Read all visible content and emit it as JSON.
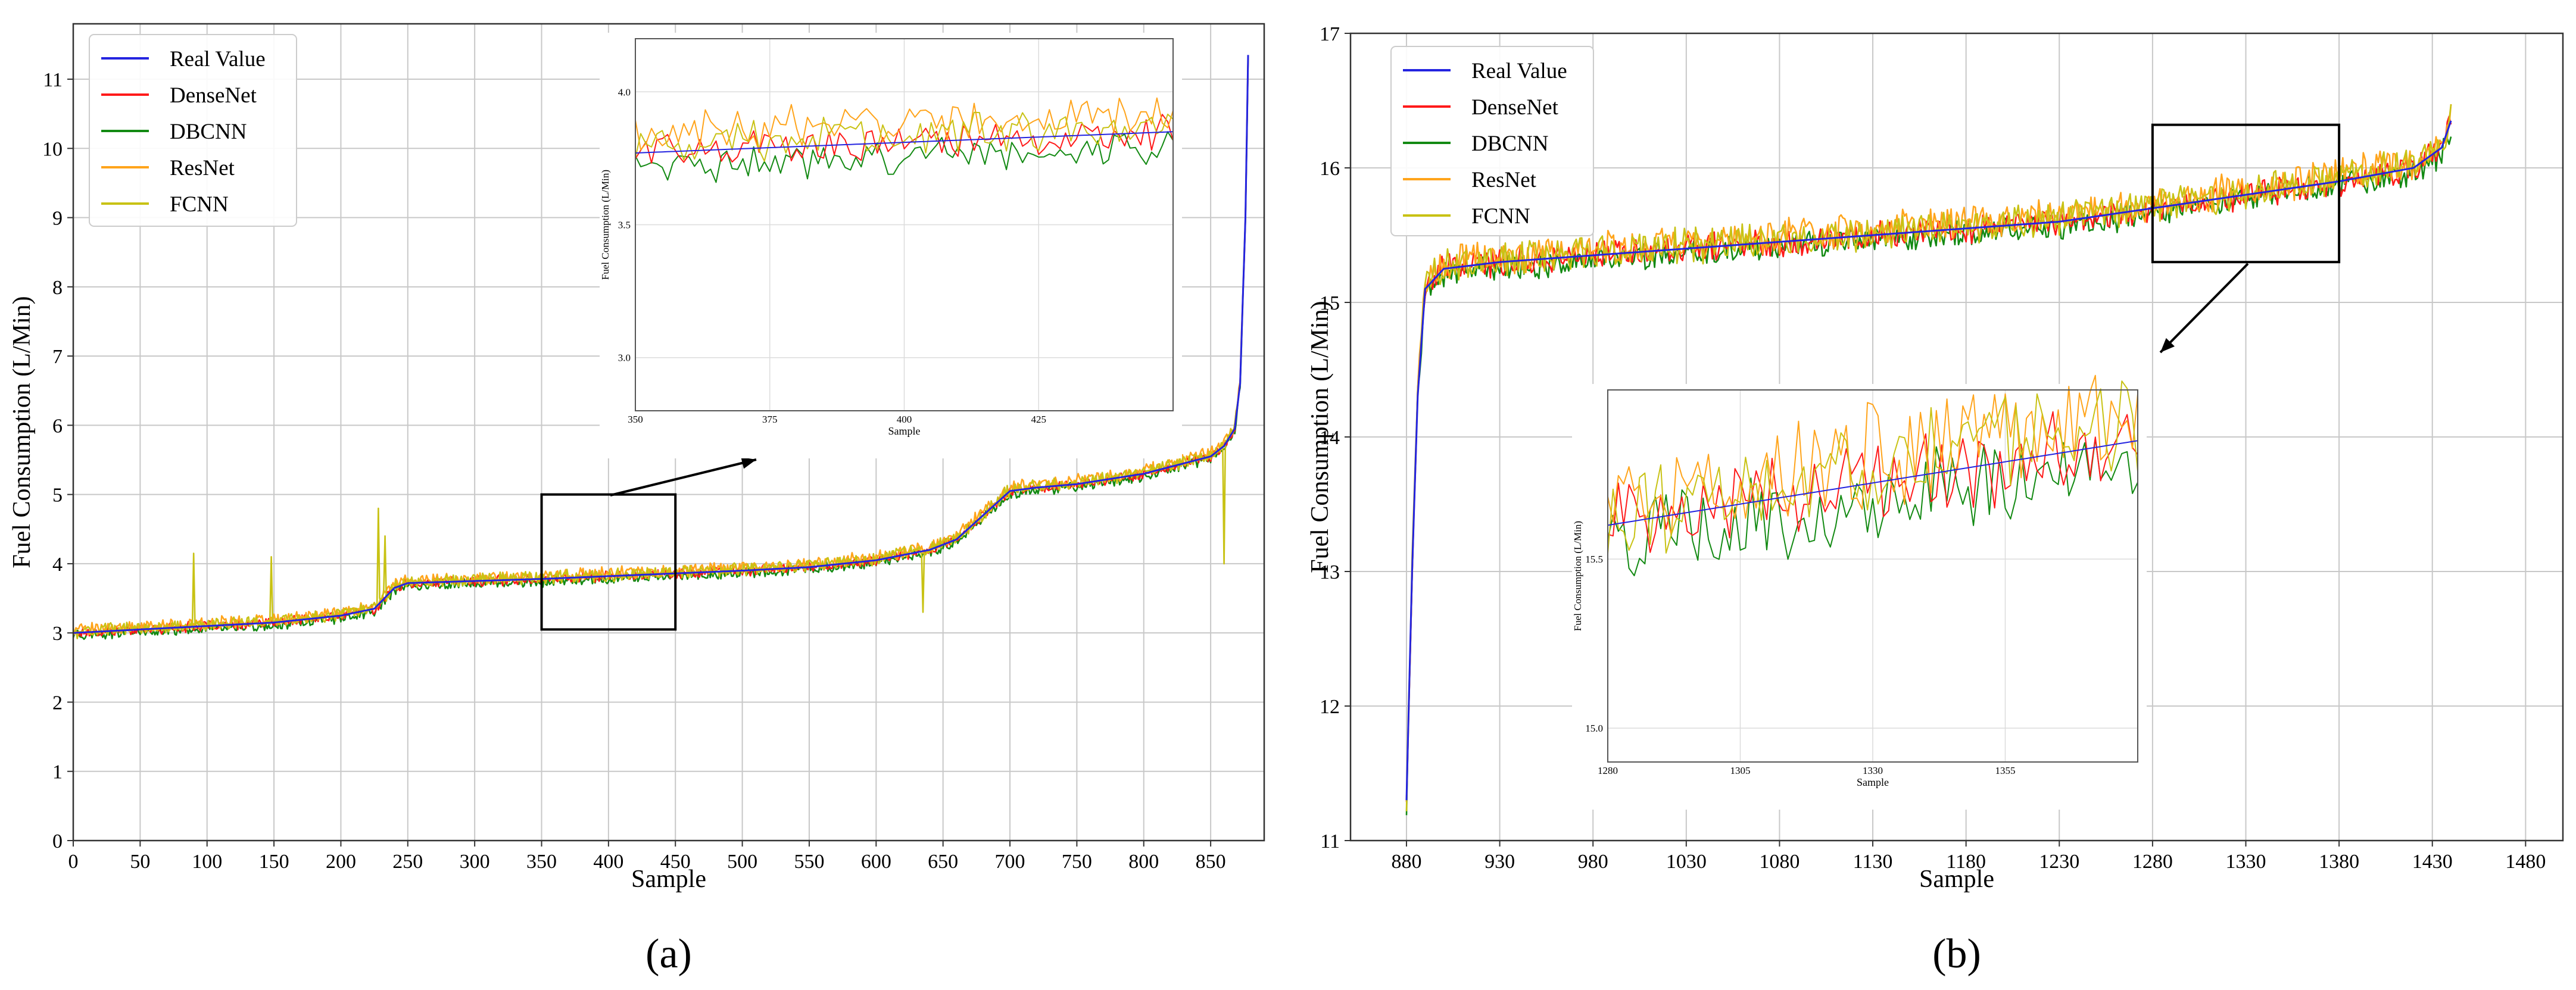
{
  "series_colors": {
    "Real Value": "#2424e0",
    "DenseNet": "#ff1a1a",
    "DBCNN": "#138a13",
    "ResNet": "#ffa41b",
    "FCNN": "#c8c214"
  },
  "chart_data": [
    {
      "type": "line",
      "panel_label": "(a)",
      "xlabel": "Sample",
      "ylabel": "Fuel Consumption (L/Min)",
      "xlim": [
        0,
        890
      ],
      "ylim": [
        0,
        11.8
      ],
      "xticks": [
        0,
        50,
        100,
        150,
        200,
        250,
        300,
        350,
        400,
        450,
        500,
        550,
        600,
        650,
        700,
        750,
        800,
        850
      ],
      "yticks": [
        0,
        1,
        2,
        3,
        4,
        5,
        6,
        7,
        8,
        9,
        10,
        11
      ],
      "legend": [
        "Real Value",
        "DenseNet",
        "DBCNN",
        "ResNet",
        "FCNN"
      ],
      "legend_position": "top-left",
      "real_value_trend": {
        "x": [
          0,
          50,
          100,
          150,
          200,
          225,
          240,
          250,
          300,
          350,
          400,
          450,
          500,
          550,
          600,
          640,
          660,
          680,
          700,
          720,
          750,
          800,
          850,
          860,
          868,
          872,
          876,
          878
        ],
        "y": [
          3.0,
          3.05,
          3.1,
          3.15,
          3.25,
          3.35,
          3.65,
          3.72,
          3.75,
          3.78,
          3.82,
          3.86,
          3.9,
          3.95,
          4.05,
          4.2,
          4.35,
          4.7,
          5.05,
          5.1,
          5.15,
          5.3,
          5.55,
          5.7,
          5.95,
          6.6,
          9.0,
          11.35
        ]
      },
      "notable_spikes": [
        {
          "x": 90,
          "y": 4.15
        },
        {
          "x": 148,
          "y": 4.1
        },
        {
          "x": 228,
          "y": 4.8
        },
        {
          "x": 233,
          "y": 4.4
        },
        {
          "x": 635,
          "y": 3.3
        },
        {
          "x": 860,
          "y": 4.0
        }
      ],
      "zoom_box": {
        "x": [
          350,
          450
        ],
        "y": [
          3.05,
          5.0
        ]
      },
      "inset": {
        "xlabel": "Sample",
        "ylabel": "Fuel Consumption (L/Min)",
        "xlim": [
          350,
          450
        ],
        "ylim": [
          2.8,
          4.2
        ],
        "xticks": [
          350,
          375,
          400,
          425
        ],
        "yticks": [
          3.0,
          3.5,
          4.0
        ],
        "real_value": {
          "x": [
            350,
            450
          ],
          "y": [
            3.77,
            3.85
          ]
        }
      }
    },
    {
      "type": "line",
      "panel_label": "(b)",
      "xlabel": "Sample",
      "ylabel": "Fuel Consumption (L/Min)",
      "xlim": [
        850,
        1500
      ],
      "ylim": [
        11,
        17
      ],
      "xticks": [
        880,
        930,
        980,
        1030,
        1080,
        1130,
        1180,
        1230,
        1280,
        1330,
        1380,
        1430,
        1480
      ],
      "yticks": [
        11,
        12,
        13,
        14,
        15,
        16,
        17
      ],
      "legend": [
        "Real Value",
        "DenseNet",
        "DBCNN",
        "ResNet",
        "FCNN"
      ],
      "legend_position": "top-left",
      "real_value_trend": {
        "x": [
          880,
          883,
          886,
          890,
          900,
          930,
          980,
          1030,
          1080,
          1130,
          1180,
          1230,
          1280,
          1330,
          1380,
          1420,
          1435,
          1440
        ],
        "y": [
          11.3,
          13.0,
          14.3,
          15.1,
          15.25,
          15.3,
          15.35,
          15.4,
          15.45,
          15.5,
          15.55,
          15.6,
          15.7,
          15.8,
          15.9,
          16.0,
          16.15,
          16.35
        ]
      },
      "zoom_box": {
        "x": [
          1280,
          1380
        ],
        "y": [
          15.3,
          16.32
        ]
      },
      "inset": {
        "xlabel": "Sample",
        "ylabel": "Fuel Consumption (L/Min)",
        "xlim": [
          1280,
          1380
        ],
        "ylim": [
          14.9,
          16.0
        ],
        "xticks": [
          1280,
          1305,
          1330,
          1355
        ],
        "yticks": [
          15.0,
          15.5
        ],
        "real_value": {
          "x": [
            1280,
            1380
          ],
          "y": [
            15.6,
            15.85
          ]
        }
      }
    }
  ]
}
